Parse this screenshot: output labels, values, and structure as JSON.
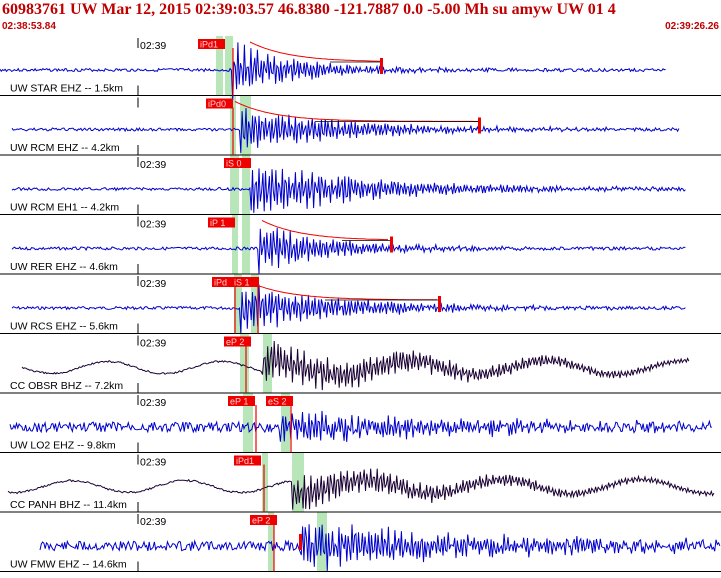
{
  "header": {
    "title": "60983761 UW Mar 12, 2015 02:39:03.57   46.8380 -121.7887  0.0 -5.00 Mh su amyw UW 01   4",
    "start_time": "02:38:53.84",
    "end_time": "02:39:26.26"
  },
  "colors": {
    "title": "#c00000",
    "trace_blue": "#0000cc",
    "trace_dark": "#1a0033",
    "pick_box": "#ee0000",
    "window": "#b8e6b8",
    "decay": "#ee0000"
  },
  "channels": [
    {
      "label": "UW STAR EHZ -- 1.5km",
      "tick": "02:39",
      "picks": [
        "iPd1"
      ],
      "color": "blue"
    },
    {
      "label": "UW RCM EHZ -- 4.2km",
      "tick": "",
      "picks": [
        "iPd0"
      ],
      "color": "blue"
    },
    {
      "label": "UW RCM EH1 -- 4.2km",
      "tick": "02:39",
      "picks": [
        "iS 0"
      ],
      "color": "blue"
    },
    {
      "label": "UW RER EHZ -- 4.6km",
      "tick": "02:39",
      "picks": [
        "iP 1"
      ],
      "color": "blue"
    },
    {
      "label": "UW RCS EHZ -- 5.6km",
      "tick": "02:39",
      "picks": [
        "iPd",
        "iS 1"
      ],
      "color": "blue"
    },
    {
      "label": "CC OBSR BHZ -- 7.2km",
      "tick": "02:39",
      "picks": [
        "eP 2"
      ],
      "color": "dark"
    },
    {
      "label": "UW LO2 EHZ -- 9.8km",
      "tick": "02:39",
      "picks": [
        "eP 1",
        "eS 2"
      ],
      "color": "blue"
    },
    {
      "label": "CC PANH BHZ -- 11.4km",
      "tick": "02:39",
      "picks": [
        "iPd1"
      ],
      "color": "dark"
    },
    {
      "label": "UW FMW EHZ -- 14.6km",
      "tick": "02:39",
      "picks": [
        "eP 2"
      ],
      "color": "blue"
    }
  ]
}
